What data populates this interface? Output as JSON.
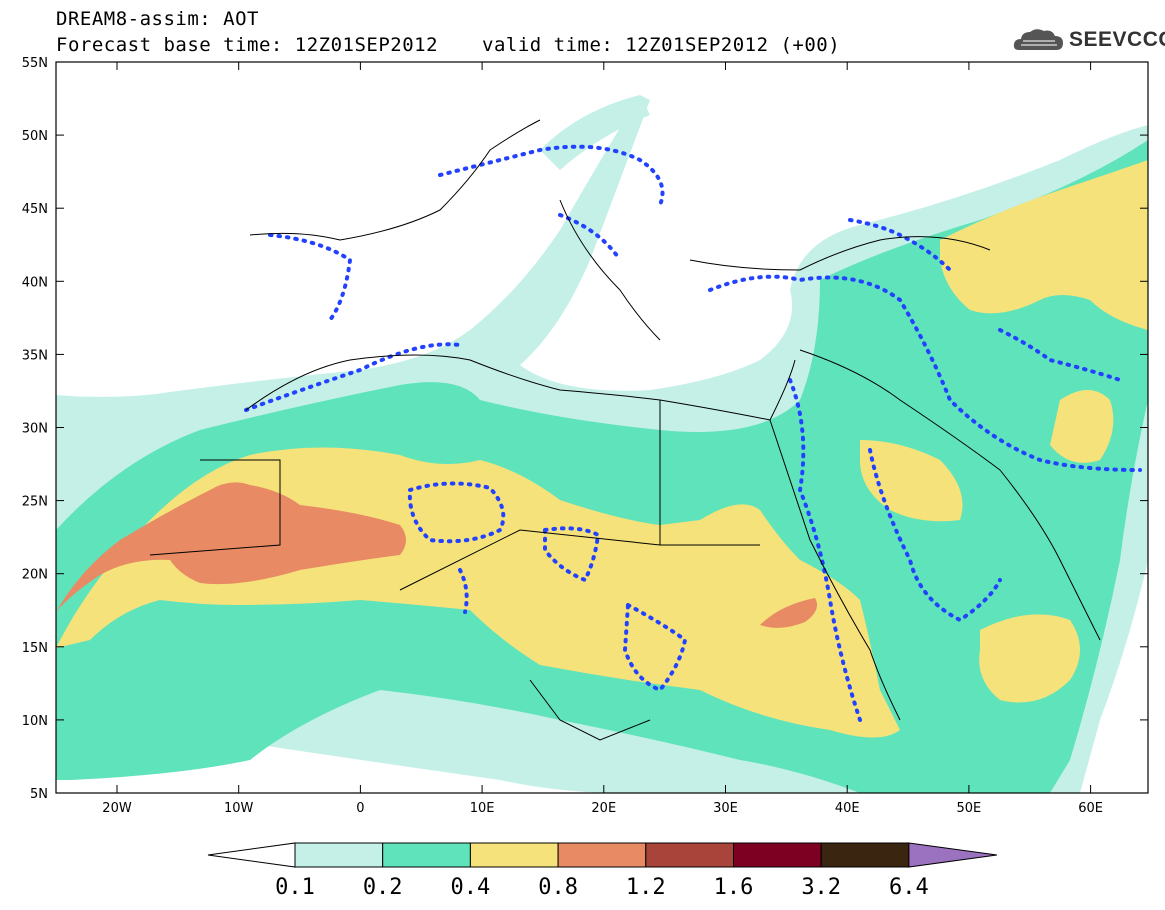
{
  "header": {
    "line1": "DREAM8-assim: AOT",
    "line2": "Forecast base time: 12Z01SEP2012",
    "valid": "valid time: 12Z01SEP2012 (+00)"
  },
  "logo": {
    "text": "SEEVCCC",
    "icon": "cloud-icon"
  },
  "axes": {
    "lat_labels": [
      "55N",
      "50N",
      "45N",
      "40N",
      "35N",
      "30N",
      "25N",
      "20N",
      "15N",
      "10N",
      "5N"
    ],
    "lon_labels": [
      "20W",
      "10W",
      "0",
      "10E",
      "20E",
      "30E",
      "40E",
      "50E",
      "60E"
    ]
  },
  "colorbar": {
    "levels": [
      "0.1",
      "0.2",
      "0.4",
      "0.8",
      "1.2",
      "1.6",
      "3.2",
      "6.4"
    ],
    "colors": [
      "#ffffff",
      "#c4f0e8",
      "#5fe3bb",
      "#f5e27a",
      "#e88a63",
      "#a8443a",
      "#7d0022",
      "#3a2510",
      "#9b72c0"
    ]
  },
  "colors": {
    "c01": "#c4f0e8",
    "c02": "#5fe3bb",
    "c04": "#f5e27a",
    "c08": "#e88a63",
    "contour": "#2242ff",
    "border": "#000000"
  }
}
